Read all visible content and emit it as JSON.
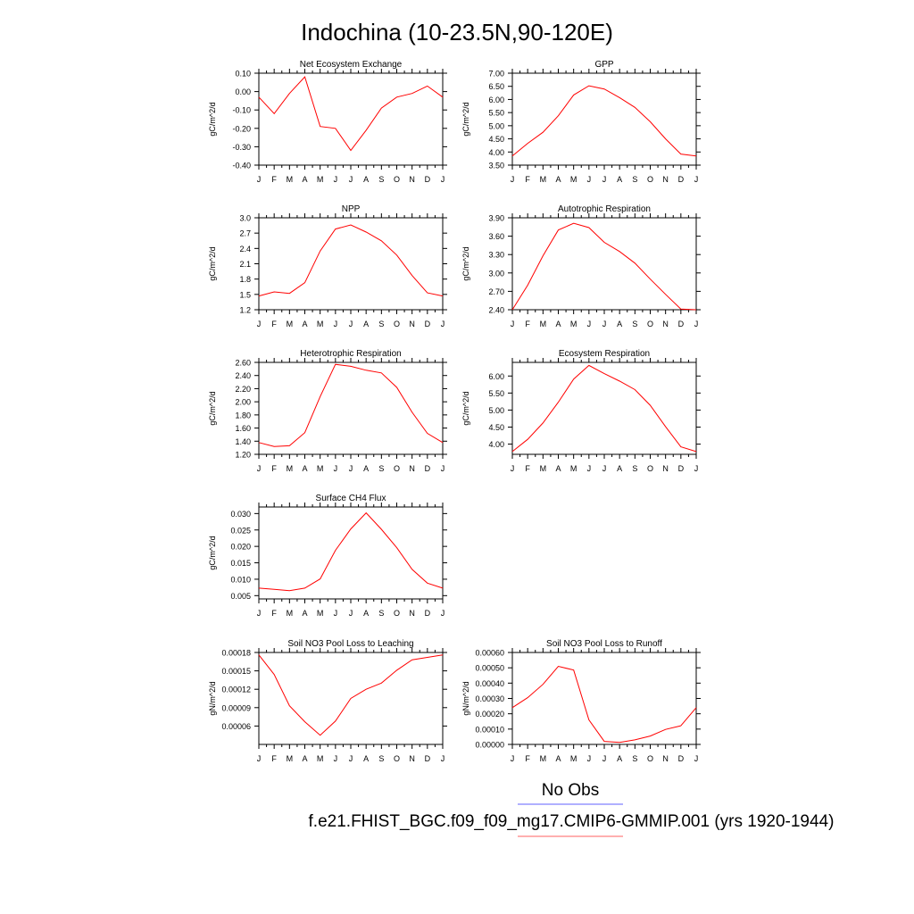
{
  "title": "Indochina (10-23.5N,90-120E)",
  "months": [
    "J",
    "F",
    "M",
    "A",
    "M",
    "J",
    "J",
    "A",
    "S",
    "O",
    "N",
    "D",
    "J"
  ],
  "legend": {
    "obs_label": "No Obs",
    "model_label": "f.e21.FHIST_BGC.f09_f09_mg17.CMIP6-GMMIP.001 (yrs 1920-1944)",
    "obs_color": "#8080ff",
    "model_color": "#ff8080"
  },
  "colors": {
    "line": "#ff0000",
    "axis": "#000000"
  },
  "chart_data": [
    {
      "type": "line",
      "title": "Net Ecosystem Exchange",
      "ylabel": "gC/m^2/d",
      "ylim": [
        -0.4,
        0.1
      ],
      "yticks": [
        "-0.40",
        "-0.30",
        "-0.20",
        "-0.10",
        "0.00",
        "0.10"
      ],
      "series": [
        {
          "values": [
            -0.03,
            -0.12,
            -0.01,
            0.08,
            -0.19,
            -0.2,
            -0.32,
            -0.21,
            -0.09,
            -0.03,
            -0.01,
            0.03,
            -0.03
          ]
        }
      ]
    },
    {
      "type": "line",
      "title": "GPP",
      "ylabel": "gC/m^2/d",
      "ylim": [
        3.5,
        7.0
      ],
      "yticks": [
        "3.50",
        "4.00",
        "4.50",
        "5.00",
        "5.50",
        "6.00",
        "6.50",
        "7.00"
      ],
      "series": [
        {
          "values": [
            3.85,
            4.33,
            4.75,
            5.38,
            6.17,
            6.52,
            6.4,
            6.07,
            5.7,
            5.15,
            4.5,
            3.92,
            3.85
          ]
        }
      ]
    },
    {
      "type": "line",
      "title": "NPP",
      "ylabel": "gC/m^2/d",
      "ylim": [
        1.2,
        3.0
      ],
      "yticks": [
        "1.2",
        "1.5",
        "1.8",
        "2.1",
        "2.4",
        "2.7",
        "3.0"
      ],
      "series": [
        {
          "values": [
            1.47,
            1.55,
            1.52,
            1.73,
            2.35,
            2.78,
            2.86,
            2.72,
            2.55,
            2.27,
            1.87,
            1.53,
            1.47
          ]
        }
      ]
    },
    {
      "type": "line",
      "title": "Autotrophic Respiration",
      "ylabel": "gC/m^2/d",
      "ylim": [
        2.4,
        3.9
      ],
      "yticks": [
        "2.40",
        "2.70",
        "3.00",
        "3.30",
        "3.60",
        "3.90"
      ],
      "series": [
        {
          "values": [
            2.4,
            2.8,
            3.28,
            3.7,
            3.81,
            3.74,
            3.5,
            3.35,
            3.16,
            2.9,
            2.65,
            2.41,
            2.4
          ]
        }
      ]
    },
    {
      "type": "line",
      "title": "Heterotrophic Respiration",
      "ylabel": "gC/m^2/d",
      "ylim": [
        1.2,
        2.6
      ],
      "yticks": [
        "1.20",
        "1.40",
        "1.60",
        "1.80",
        "2.00",
        "2.20",
        "2.40",
        "2.60"
      ],
      "series": [
        {
          "values": [
            1.38,
            1.32,
            1.33,
            1.53,
            2.08,
            2.57,
            2.54,
            2.48,
            2.44,
            2.22,
            1.84,
            1.52,
            1.38
          ]
        }
      ]
    },
    {
      "type": "line",
      "title": "Ecosystem Respiration",
      "ylabel": "gC/m^2/d",
      "ylim": [
        3.7,
        6.4
      ],
      "yticks": [
        "4.00",
        "4.50",
        "5.00",
        "5.50",
        "6.00"
      ],
      "series": [
        {
          "values": [
            3.78,
            4.14,
            4.62,
            5.23,
            5.91,
            6.31,
            6.07,
            5.85,
            5.6,
            5.14,
            4.51,
            3.92,
            3.78
          ]
        }
      ]
    },
    {
      "type": "line",
      "title": "Surface CH4 Flux",
      "ylabel": "gC/m^2/d",
      "ylim": [
        0.004,
        0.032
      ],
      "yticks": [
        "0.005",
        "0.010",
        "0.015",
        "0.020",
        "0.025",
        "0.030"
      ],
      "series": [
        {
          "values": [
            0.0073,
            0.0069,
            0.0065,
            0.0073,
            0.0101,
            0.0188,
            0.0253,
            0.0302,
            0.0252,
            0.0196,
            0.013,
            0.0088,
            0.0073
          ]
        }
      ]
    },
    null,
    {
      "type": "line",
      "title": "Soil NO3 Pool Loss to Leaching",
      "ylabel": "gN/m^2/d",
      "ylim": [
        3e-05,
        0.00018
      ],
      "yticks": [
        "0.00006",
        "0.00009",
        "0.00012",
        "0.00015",
        "0.00018"
      ],
      "series": [
        {
          "values": [
            0.000176,
            0.000144,
            9.3e-05,
            6.7e-05,
            4.5e-05,
            6.8e-05,
            0.000105,
            0.00012,
            0.00013,
            0.000151,
            0.000168,
            0.000172,
            0.000176
          ]
        }
      ]
    },
    {
      "type": "line",
      "title": "Soil NO3 Pool Loss to Runoff",
      "ylabel": "gN/m^2/d",
      "ylim": [
        0.0,
        0.0006
      ],
      "yticks": [
        "0.00000",
        "0.00010",
        "0.00020",
        "0.00030",
        "0.00040",
        "0.00050",
        "0.00060"
      ],
      "series": [
        {
          "values": [
            0.00024,
            0.000305,
            0.000392,
            0.00051,
            0.000485,
            0.00016,
            2e-05,
            1.3e-05,
            3e-05,
            5.5e-05,
            9.8e-05,
            0.000122,
            0.00024
          ]
        }
      ]
    }
  ]
}
